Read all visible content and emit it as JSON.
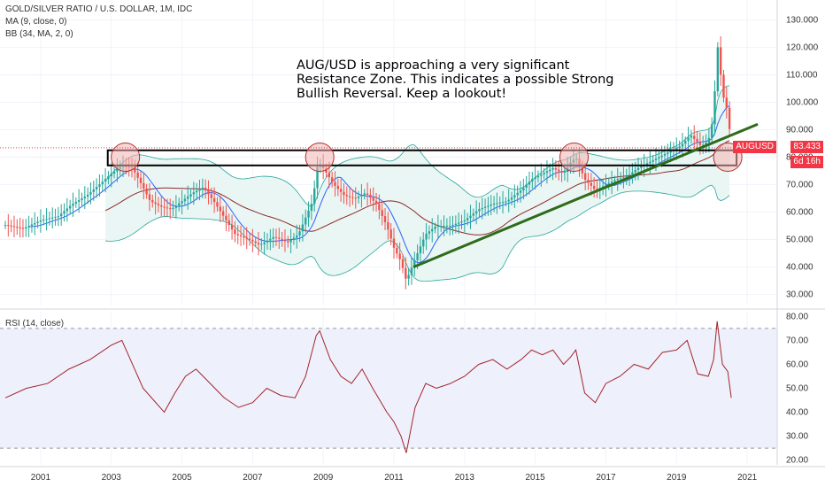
{
  "header": {
    "title": "GOLD/SILVER RATIO / U.S. DOLLAR, 1M, IDC",
    "indicators": [
      "MA (9, close, 0)",
      "BB (34, MA, 2, 0)"
    ]
  },
  "annotation": {
    "lines": [
      "AUG/USD is approaching a very significant",
      "Resistance Zone. This indicates a possible Strong",
      "Bullish Reversal. Keep a lookout!"
    ]
  },
  "price_badge": {
    "symbol": "AUGUSD",
    "value": "83.433",
    "countdown": "6d 16h"
  },
  "rsi_panel": {
    "label": "RSI (14, close)"
  },
  "colors": {
    "up": "#26a69a",
    "down": "#ef5350",
    "ma9": "#2962ff",
    "bb_basis": "#8d2a2a",
    "bb_fill": "#e7f5f3",
    "bb_band": "#26a69a",
    "trendline": "#2e6b1a",
    "rsi_line": "#a4232d",
    "rsi_band": "#eef1fb",
    "resistance_zone": "#f6d8d8",
    "badge": "#f23645"
  },
  "chart_data": [
    {
      "type": "candlestick",
      "title": "GOLD/SILVER RATIO / U.S. DOLLAR, 1M, IDC",
      "x_ticks": [
        "2001",
        "2003",
        "2005",
        "2007",
        "2009",
        "2011",
        "2013",
        "2015",
        "2017",
        "2019",
        "2021"
      ],
      "y_ticks": [
        "30.000",
        "40.000",
        "50.000",
        "60.000",
        "70.000",
        "80.000",
        "90.000",
        "100.000",
        "110.000",
        "120.000",
        "130.000"
      ],
      "ylim": [
        26,
        134
      ],
      "x_range": [
        2000.0,
        2022.0
      ],
      "last_value": 83.433,
      "ratio_path": [
        [
          2000.0,
          55.3
        ],
        [
          2000.5,
          54.0
        ],
        [
          2001.0,
          57.0
        ],
        [
          2001.5,
          58.5
        ],
        [
          2001.9,
          63.0
        ],
        [
          2002.3,
          66.0
        ],
        [
          2002.7,
          70.5
        ],
        [
          2003.0,
          74.0
        ],
        [
          2003.3,
          77.0
        ],
        [
          2003.6,
          76.0
        ],
        [
          2003.9,
          69.0
        ],
        [
          2004.1,
          64.0
        ],
        [
          2004.4,
          62.0
        ],
        [
          2004.7,
          61.0
        ],
        [
          2005.0,
          64.0
        ],
        [
          2005.3,
          67.0
        ],
        [
          2005.6,
          69.0
        ],
        [
          2005.9,
          64.0
        ],
        [
          2006.2,
          58.0
        ],
        [
          2006.5,
          52.0
        ],
        [
          2006.9,
          50.0
        ],
        [
          2007.2,
          48.0
        ],
        [
          2007.6,
          51.0
        ],
        [
          2008.0,
          49.0
        ],
        [
          2008.3,
          52.0
        ],
        [
          2008.7,
          64.0
        ],
        [
          2008.85,
          78.0
        ],
        [
          2009.0,
          76.0
        ],
        [
          2009.3,
          70.0
        ],
        [
          2009.6,
          66.0
        ],
        [
          2009.9,
          65.0
        ],
        [
          2010.2,
          67.0
        ],
        [
          2010.5,
          63.0
        ],
        [
          2010.8,
          55.0
        ],
        [
          2011.0,
          47.0
        ],
        [
          2011.2,
          42.0
        ],
        [
          2011.35,
          35.0
        ],
        [
          2011.6,
          43.0
        ],
        [
          2011.9,
          52.0
        ],
        [
          2012.2,
          55.0
        ],
        [
          2012.6,
          55.0
        ],
        [
          2013.0,
          57.0
        ],
        [
          2013.4,
          61.0
        ],
        [
          2013.8,
          63.0
        ],
        [
          2014.2,
          64.0
        ],
        [
          2014.6,
          68.0
        ],
        [
          2014.9,
          72.0
        ],
        [
          2015.2,
          74.0
        ],
        [
          2015.5,
          76.0
        ],
        [
          2015.8,
          74.0
        ],
        [
          2016.0,
          78.0
        ],
        [
          2016.15,
          80.0
        ],
        [
          2016.4,
          72.0
        ],
        [
          2016.7,
          68.0
        ],
        [
          2017.0,
          70.0
        ],
        [
          2017.3,
          72.0
        ],
        [
          2017.6,
          73.0
        ],
        [
          2017.9,
          76.0
        ],
        [
          2018.2,
          78.0
        ],
        [
          2018.5,
          80.0
        ],
        [
          2018.8,
          82.0
        ],
        [
          2019.1,
          84.0
        ],
        [
          2019.4,
          88.0
        ],
        [
          2019.7,
          84.0
        ],
        [
          2019.9,
          86.0
        ],
        [
          2020.05,
          95.0
        ],
        [
          2020.15,
          122.0
        ],
        [
          2020.25,
          110.0
        ],
        [
          2020.35,
          100.0
        ],
        [
          2020.45,
          97.0
        ],
        [
          2020.55,
          83.433
        ]
      ]
    },
    {
      "type": "line",
      "title": "RSI (14, close)",
      "y_ticks": [
        "20.00",
        "30.00",
        "40.00",
        "50.00",
        "60.00",
        "70.00",
        "80.00"
      ],
      "ylim": [
        18,
        82
      ],
      "bands": [
        25,
        75
      ],
      "last_value": 46,
      "x": [
        2000.0,
        2000.6,
        2001.2,
        2001.8,
        2002.4,
        2003.0,
        2003.3,
        2003.6,
        2003.9,
        2004.2,
        2004.5,
        2004.8,
        2005.1,
        2005.4,
        2005.8,
        2006.2,
        2006.6,
        2007.0,
        2007.4,
        2007.8,
        2008.2,
        2008.5,
        2008.8,
        2008.9,
        2009.2,
        2009.5,
        2009.8,
        2010.1,
        2010.4,
        2010.8,
        2011.0,
        2011.2,
        2011.35,
        2011.6,
        2011.9,
        2012.2,
        2012.6,
        2013.0,
        2013.4,
        2013.8,
        2014.2,
        2014.6,
        2014.9,
        2015.2,
        2015.5,
        2015.8,
        2016.0,
        2016.15,
        2016.4,
        2016.7,
        2017.0,
        2017.4,
        2017.8,
        2018.2,
        2018.6,
        2019.0,
        2019.3,
        2019.6,
        2019.9,
        2020.05,
        2020.15,
        2020.3,
        2020.45,
        2020.55
      ],
      "values": [
        46,
        50,
        52,
        58,
        62,
        68,
        70,
        60,
        50,
        45,
        40,
        48,
        55,
        58,
        52,
        46,
        42,
        44,
        50,
        47,
        46,
        55,
        72,
        74,
        62,
        55,
        52,
        58,
        50,
        40,
        36,
        30,
        23,
        42,
        52,
        50,
        52,
        55,
        60,
        62,
        58,
        62,
        66,
        64,
        66,
        60,
        63,
        66,
        48,
        44,
        52,
        55,
        60,
        58,
        65,
        66,
        70,
        56,
        55,
        62,
        78,
        60,
        57,
        46
      ]
    }
  ]
}
